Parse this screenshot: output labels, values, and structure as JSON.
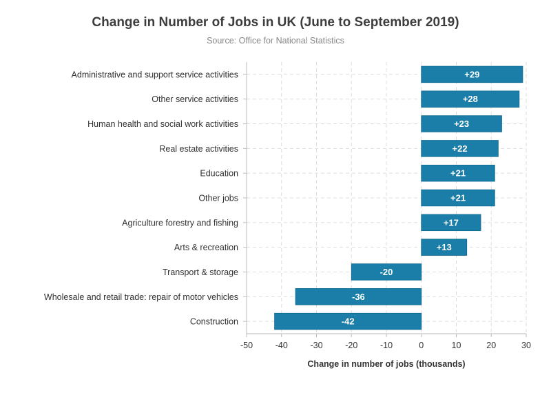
{
  "chart_data": {
    "type": "bar",
    "orientation": "horizontal",
    "title": "Change in Number of Jobs in UK (June to September 2019)",
    "subtitle": "Source: Office for National Statistics",
    "xlabel": "Change in number of jobs (thousands)",
    "ylabel": "",
    "xlim": [
      -50,
      30
    ],
    "xticks": [
      -50,
      -40,
      -30,
      -20,
      -10,
      0,
      10,
      20,
      30
    ],
    "grid": true,
    "bar_color": "#1a7ea8",
    "categories": [
      "Administrative and support service activities",
      "Other service activities",
      "Human health and social work activities",
      "Real estate activities",
      "Education",
      "Other jobs",
      "Agriculture forestry and fishing",
      "Arts & recreation",
      "Transport & storage",
      "Wholesale and retail trade: repair of motor vehicles",
      "Construction"
    ],
    "values": [
      29,
      28,
      23,
      22,
      21,
      21,
      17,
      13,
      -20,
      -36,
      -42
    ],
    "data_labels": [
      "+29",
      "+28",
      "+23",
      "+22",
      "+21",
      "+21",
      "+17",
      "+13",
      "-20",
      "-36",
      "-42"
    ]
  }
}
